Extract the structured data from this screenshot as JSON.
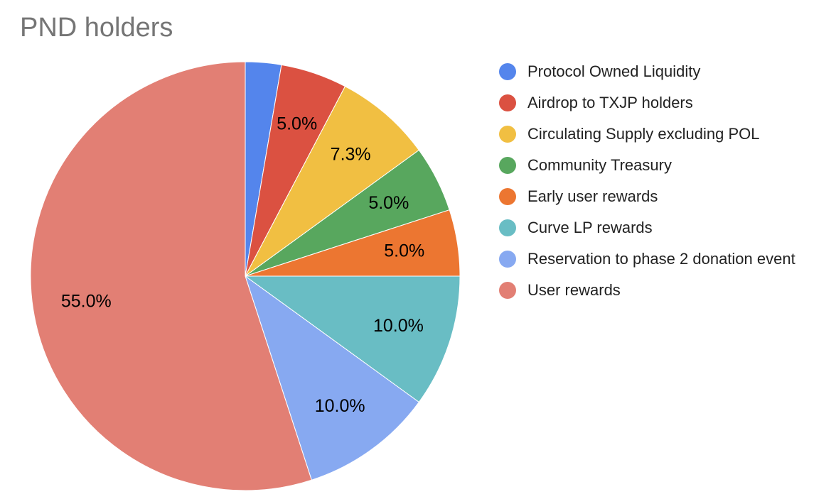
{
  "chart_data": {
    "type": "pie",
    "title": "PND holders",
    "legend_position": "right",
    "slices": [
      {
        "label": "Protocol Owned Liquidity",
        "value": 2.7,
        "color": "#5485EC",
        "display": ""
      },
      {
        "label": "Airdrop to TXJP holders",
        "value": 5.0,
        "color": "#DB5141",
        "display": "5.0%"
      },
      {
        "label": "Circulating Supply excluding POL",
        "value": 7.3,
        "color": "#F1BF42",
        "display": "7.3%"
      },
      {
        "label": "Community Treasury",
        "value": 5.0,
        "color": "#58A75E",
        "display": "5.0%"
      },
      {
        "label": "Early user rewards",
        "value": 5.0,
        "color": "#EC7631",
        "display": "5.0%"
      },
      {
        "label": "Curve LP rewards",
        "value": 10.0,
        "color": "#69BDC4",
        "display": "10.0%"
      },
      {
        "label": "Reservation to phase 2 donation event",
        "value": 10.0,
        "color": "#87A9F1",
        "display": "10.0%"
      },
      {
        "label": "User rewards",
        "value": 55.0,
        "color": "#E27F74",
        "display": "55.0%"
      }
    ]
  }
}
